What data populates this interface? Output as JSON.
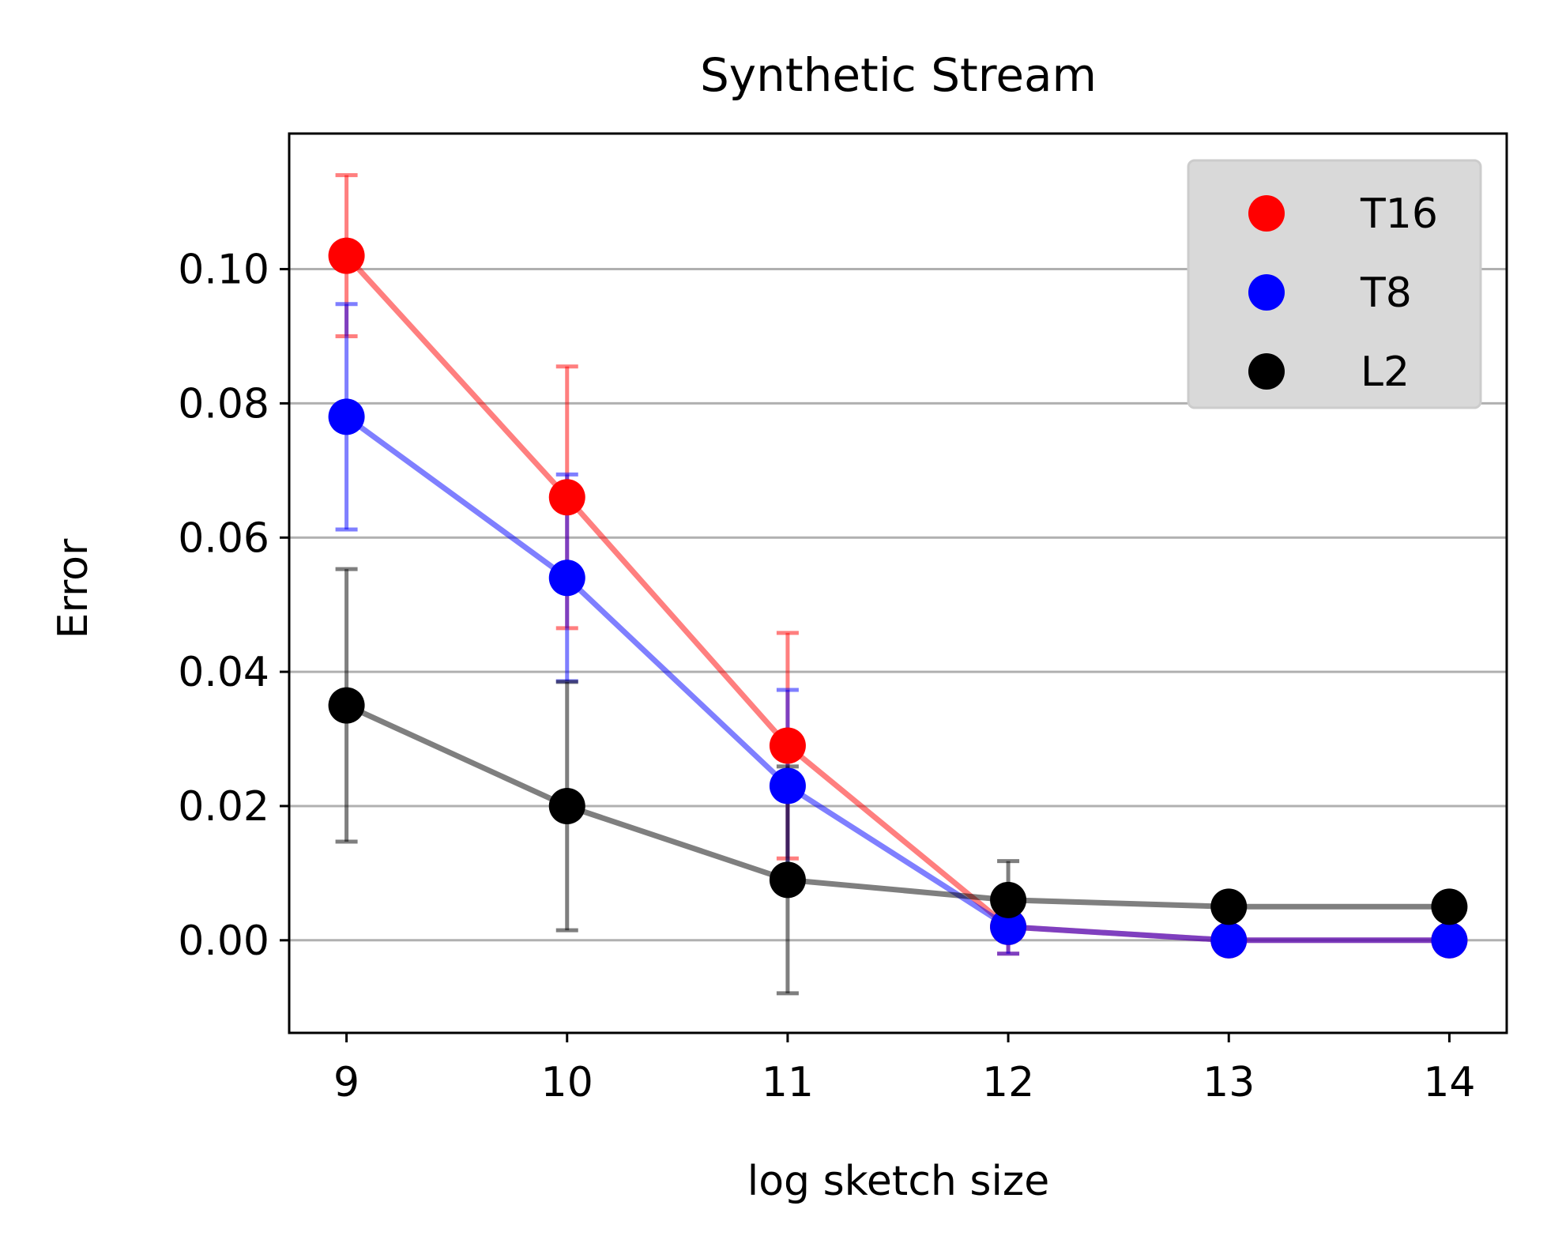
{
  "chart_data": {
    "type": "line",
    "title": "Synthetic Stream",
    "xlabel": "log sketch size",
    "ylabel": "Error",
    "x": [
      9,
      10,
      11,
      12,
      13,
      14
    ],
    "x_ticks": [
      "9",
      "10",
      "11",
      "12",
      "13",
      "14"
    ],
    "y_ticks": [
      "0.00",
      "0.02",
      "0.04",
      "0.06",
      "0.08",
      "0.10"
    ],
    "xlim": [
      8.74,
      14.26
    ],
    "ylim": [
      -0.0138,
      0.1202
    ],
    "grid": "horizontal",
    "legend_position": "top-right",
    "series": [
      {
        "name": "T16",
        "color": "#ff0000",
        "values": [
          0.102,
          0.066,
          0.029,
          0.002,
          0.0,
          0.0
        ],
        "errors": [
          0.012,
          0.0195,
          0.0168,
          0.004,
          0.0,
          0.0
        ]
      },
      {
        "name": "T8",
        "color": "#0000ff",
        "values": [
          0.078,
          0.054,
          0.023,
          0.002,
          0.0,
          0.0
        ],
        "errors": [
          0.0168,
          0.0154,
          0.0143,
          0.004,
          0.0,
          0.0
        ]
      },
      {
        "name": "L2",
        "color": "#000000",
        "values": [
          0.035,
          0.02,
          0.009,
          0.006,
          0.005,
          0.005
        ],
        "errors": [
          0.0203,
          0.0185,
          0.0169,
          0.0058,
          0.0,
          0.0
        ]
      }
    ]
  }
}
